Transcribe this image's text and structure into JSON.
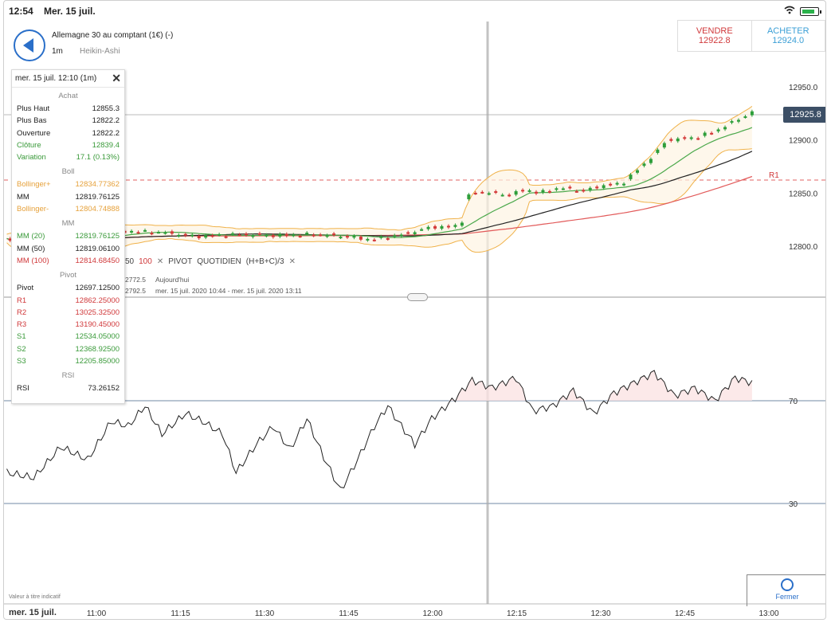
{
  "status": {
    "time": "12:54",
    "date": "Mer. 15 juil."
  },
  "header": {
    "instrument": "Allemagne 30 au comptant (1€) (-)",
    "timeframe": "1m",
    "chart_type": "Heikin-Ashi",
    "sell_label": "VENDRE",
    "sell_price": "12922.8",
    "buy_label": "ACHETER",
    "buy_price": "12924.0"
  },
  "info": {
    "header": "mer. 15 juil. 12:10 (1m)",
    "achat": {
      "title": "Achat",
      "rows": [
        {
          "k": "Plus Haut",
          "v": "12855.3"
        },
        {
          "k": "Plus Bas",
          "v": "12822.2"
        },
        {
          "k": "Ouverture",
          "v": "12822.2"
        },
        {
          "k": "Clôture",
          "v": "12839.4"
        },
        {
          "k": "Variation",
          "v": "17.1 (0.13%)"
        }
      ]
    },
    "boll": {
      "title": "Boll",
      "rows": [
        {
          "k": "Bollinger+",
          "v": "12834.77362"
        },
        {
          "k": "MM",
          "v": "12819.76125"
        },
        {
          "k": "Bollinger-",
          "v": "12804.74888"
        }
      ]
    },
    "mm": {
      "title": "MM",
      "rows": [
        {
          "k": "MM (20)",
          "v": "12819.76125"
        },
        {
          "k": "MM (50)",
          "v": "12819.06100"
        },
        {
          "k": "MM (100)",
          "v": "12814.68450"
        }
      ]
    },
    "pivot": {
      "title": "Pivot",
      "rows": [
        {
          "k": "Pivot",
          "v": "12697.12500"
        },
        {
          "k": "R1",
          "v": "12862.25000"
        },
        {
          "k": "R2",
          "v": "13025.32500"
        },
        {
          "k": "R3",
          "v": "13190.45000"
        },
        {
          "k": "S1",
          "v": "12534.05000"
        },
        {
          "k": "S2",
          "v": "12368.92500"
        },
        {
          "k": "S3",
          "v": "12205.85000"
        }
      ]
    },
    "rsi": {
      "title": "RSI",
      "rows": [
        {
          "k": "RSI",
          "v": "73.26152"
        }
      ]
    }
  },
  "legend": {
    "a": "50",
    "b": "100",
    "pivot_label": "PIVOT",
    "pivot_name": "QUOTIDIEN",
    "pivot_formula": "(H+B+C)/3",
    "line1_value": "2772.5",
    "line1_text": "Aujourd'hui",
    "line2_value": "2792.5",
    "line2_text": "mer. 15 juil. 2020 10:44 - mer. 15 juil. 2020 13:11"
  },
  "price_axis": {
    "ticks": [
      "12950.0",
      "12900.0",
      "12850.0",
      "12800.0"
    ],
    "current": "12925.8",
    "r1_label": "R1"
  },
  "rsi_axis": {
    "ticks": [
      "70",
      "30"
    ]
  },
  "time_axis": {
    "date_label": "mer. 15 juil.",
    "ticks": [
      "11:00",
      "11:15",
      "11:30",
      "11:45",
      "12:00",
      "12:15",
      "12:30",
      "12:45",
      "13:00"
    ]
  },
  "footer": {
    "disclaimer": "Valeur à titre indicatif",
    "close_label": "Fermer"
  },
  "colors": {
    "up": "#2e9e3a",
    "down": "#d43a3a",
    "boll": "#f0b24a",
    "ma20": "#4aa84a",
    "ma50": "#222222",
    "ma100": "#e25a5a",
    "rsi": "#222222",
    "rsi_over": "#d84545",
    "accent": "#2a6fc9"
  }
}
